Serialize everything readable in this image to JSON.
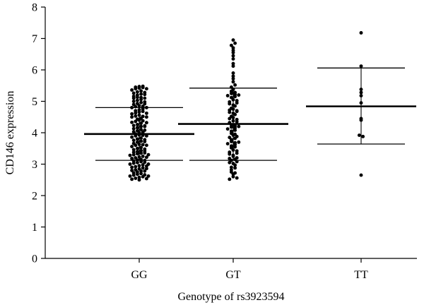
{
  "chart_data": {
    "type": "scatter",
    "xlabel": "Genotype of rs3923594",
    "ylabel": "CD146 expression",
    "ylim": [
      0,
      8
    ],
    "yticks": [
      0,
      1,
      2,
      3,
      4,
      5,
      6,
      7,
      8
    ],
    "grid": false,
    "categories": [
      "GG",
      "GT",
      "TT"
    ],
    "groups": [
      {
        "name": "GG",
        "mean": 3.96,
        "upper": 4.8,
        "lower": 3.12,
        "values": [
          2.5,
          2.52,
          2.55,
          2.58,
          2.6,
          2.62,
          2.65,
          2.68,
          2.7,
          2.72,
          2.75,
          2.78,
          2.8,
          2.82,
          2.85,
          2.88,
          2.9,
          2.92,
          2.95,
          2.98,
          3.0,
          3.03,
          3.05,
          3.08,
          3.1,
          3.13,
          3.15,
          3.18,
          3.2,
          3.23,
          3.25,
          3.28,
          3.3,
          3.33,
          3.35,
          3.38,
          3.4,
          3.43,
          3.46,
          3.5,
          3.53,
          3.56,
          3.6,
          3.63,
          3.66,
          3.7,
          3.73,
          3.76,
          3.8,
          3.83,
          3.86,
          3.9,
          3.93,
          3.96,
          4.0,
          4.03,
          4.06,
          4.1,
          4.13,
          4.16,
          4.2,
          4.23,
          4.26,
          4.3,
          4.33,
          4.36,
          4.4,
          4.43,
          4.46,
          4.5,
          4.53,
          4.56,
          4.6,
          4.63,
          4.66,
          4.7,
          4.73,
          4.76,
          4.8,
          4.83,
          4.86,
          4.9,
          4.93,
          4.96,
          5.0,
          5.03,
          5.06,
          5.1,
          5.13,
          5.16,
          5.2,
          5.23,
          5.26,
          5.3,
          5.33,
          5.36,
          5.4,
          5.42,
          5.45,
          5.47,
          5.48,
          2.54,
          2.66,
          2.78,
          2.94,
          3.06,
          3.22,
          3.36,
          3.48,
          3.62,
          3.78,
          3.92,
          4.08,
          4.22,
          4.38,
          4.52,
          4.68,
          4.84,
          4.98,
          5.12,
          5.28,
          5.44,
          2.62,
          2.86,
          3.12,
          3.42,
          3.72,
          4.02,
          4.32,
          4.62,
          4.92,
          5.22,
          3.0,
          3.3,
          3.6,
          3.9,
          4.2,
          4.5,
          4.8,
          5.1,
          5.4
        ]
      },
      {
        "name": "GT",
        "mean": 4.28,
        "upper": 5.42,
        "lower": 3.12,
        "values": [
          2.52,
          2.6,
          2.68,
          2.75,
          2.82,
          2.9,
          2.97,
          3.05,
          3.12,
          3.18,
          3.25,
          3.32,
          3.38,
          3.45,
          3.52,
          3.58,
          3.65,
          3.72,
          3.78,
          3.85,
          3.92,
          3.98,
          4.05,
          4.12,
          4.18,
          4.25,
          4.32,
          4.38,
          4.45,
          4.52,
          4.58,
          4.65,
          4.72,
          4.78,
          4.85,
          4.92,
          4.98,
          5.05,
          5.12,
          5.18,
          5.25,
          5.32,
          5.38,
          5.45,
          5.52,
          5.62,
          2.56,
          2.72,
          2.88,
          3.02,
          3.15,
          3.28,
          3.42,
          3.55,
          3.68,
          3.82,
          3.95,
          4.08,
          4.22,
          4.35,
          4.48,
          4.62,
          4.75,
          4.88,
          5.02,
          5.15,
          5.28,
          3.08,
          3.35,
          3.62,
          3.88,
          4.15,
          4.42,
          4.68,
          4.95,
          5.22,
          3.2,
          3.7,
          4.2,
          4.7,
          5.2,
          6.12,
          6.2,
          6.35,
          6.45,
          6.55,
          6.62,
          6.7,
          6.78,
          6.85,
          6.95,
          5.72,
          5.8,
          5.9
        ]
      },
      {
        "name": "TT",
        "mean": 4.84,
        "upper": 6.06,
        "lower": 3.64,
        "values": [
          7.18,
          6.12,
          5.38,
          5.28,
          5.18,
          4.95,
          4.45,
          4.4,
          3.92,
          3.88,
          2.65
        ]
      }
    ]
  }
}
